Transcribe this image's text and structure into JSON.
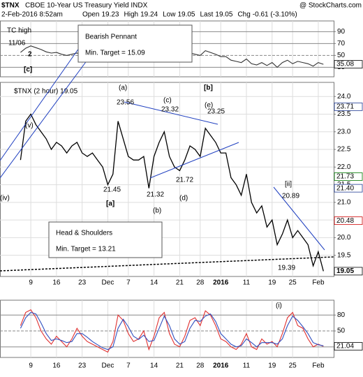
{
  "header": {
    "symbol": "$TNX",
    "name": "CBOE 10-Year US Treasury Yield INDX",
    "source": "@ StockCharts.com",
    "date": "2-Feb-2016 8:52am",
    "quote": [
      {
        "label": "Open",
        "value": 19.23
      },
      {
        "label": "High",
        "value": 19.24
      },
      {
        "label": "Low",
        "value": 19.05
      },
      {
        "label": "Last",
        "value": 19.05
      },
      {
        "label": "Chg",
        "value": "-0.61 (-3.10%)"
      }
    ]
  },
  "annotations": [
    {
      "text": "TC high",
      "color": "#000000"
    },
    {
      "text": "11/06",
      "color": "#000000"
    },
    {
      "text": "2",
      "color": "#8a2be2"
    },
    {
      "text": "[c]",
      "color": "#cc0000"
    },
    {
      "text": "(v)",
      "color": "#008000"
    },
    {
      "text": "(a)",
      "color": "#008000"
    },
    {
      "text": "(c)",
      "color": "#008000"
    },
    {
      "text": "(e)",
      "color": "#008000"
    },
    {
      "text": "[b]",
      "color": "#cc0000"
    },
    {
      "text": "23.56",
      "color": "#000000"
    },
    {
      "text": "23.32",
      "color": "#000000"
    },
    {
      "text": "23.25",
      "color": "#000000"
    },
    {
      "text": "21.45",
      "color": "#000000"
    },
    {
      "text": "21.32",
      "color": "#000000"
    },
    {
      "text": "21.72",
      "color": "#000000"
    },
    {
      "text": "20.89",
      "color": "#000000"
    },
    {
      "text": "19.39",
      "color": "#000000"
    },
    {
      "text": "[a]",
      "color": "#cc0000"
    },
    {
      "text": "(b)",
      "color": "#008000"
    },
    {
      "text": "(d)",
      "color": "#008000"
    },
    {
      "text": "(iv)",
      "color": "#008000"
    },
    {
      "text": "[ii]",
      "color": "#008000"
    },
    {
      "text": "(i)",
      "color": "#008000"
    },
    {
      "text": "Bearish Pennant",
      "color": "#000000"
    },
    {
      "text": "Min. Target = 15.09",
      "color": "#000000"
    },
    {
      "text": "Head & Shoulders",
      "color": "#000000"
    },
    {
      "text": "Min. Target = 13.21",
      "color": "#000000"
    }
  ],
  "chart_data": [
    {
      "type": "line",
      "ylim": [
        14,
        108
      ],
      "yticks": [
        30,
        50,
        70,
        90
      ],
      "grid": true,
      "series": [
        {
          "color": "#333333",
          "values": [
            55,
            62,
            66,
            63,
            60,
            56,
            54,
            55,
            52,
            50,
            52,
            54,
            51,
            50,
            50,
            48,
            47,
            42,
            46,
            60,
            55,
            50,
            49,
            50,
            51,
            42,
            50,
            55,
            58,
            50,
            46,
            45,
            49,
            54,
            52,
            50,
            58,
            55,
            52,
            48,
            48,
            42,
            40,
            38,
            44,
            36,
            34,
            38,
            33,
            38,
            30,
            38,
            42,
            36,
            40,
            38,
            36,
            32,
            38,
            35
          ]
        }
      ],
      "tags": [
        35.08
      ],
      "tag_colors": [
        "#000000"
      ]
    },
    {
      "type": "line",
      "xlim": [
        -4,
        61
      ],
      "xticks": [
        {
          "value": 2,
          "label": "9"
        },
        {
          "value": 7,
          "label": "16"
        },
        {
          "value": 12,
          "label": "23"
        },
        {
          "value": 17,
          "label": "Dec"
        },
        {
          "value": 21,
          "label": "7"
        },
        {
          "value": 26,
          "label": "14"
        },
        {
          "value": 31,
          "label": "21"
        },
        {
          "value": 35,
          "label": "28"
        },
        {
          "value": 39,
          "label": "2016"
        },
        {
          "value": 44,
          "label": "11"
        },
        {
          "value": 49,
          "label": "19"
        },
        {
          "value": 53,
          "label": "25"
        },
        {
          "value": 58,
          "label": "Feb"
        }
      ],
      "ylim": [
        18.9,
        24.4
      ],
      "yticks": [
        19.5,
        {
          "value": 20,
          "label": "20.0"
        },
        20.5,
        {
          "value": 21,
          "label": "21.0"
        },
        21.5,
        {
          "value": 22,
          "label": "22.0"
        },
        22.5,
        {
          "value": 23,
          "label": "23.0"
        },
        23.5,
        {
          "value": 24,
          "label": "24.0"
        }
      ],
      "grid": true,
      "series": [
        {
          "name": "$TNX (2 hour) 19.05",
          "color": "#000000",
          "values": [
            22.2,
            23.3,
            23.5,
            23.2,
            23.0,
            22.8,
            22.5,
            22.7,
            22.6,
            22.4,
            22.6,
            22.7,
            22.4,
            22.3,
            22.4,
            22.2,
            22.0,
            21.5,
            21.8,
            23.3,
            22.8,
            22.3,
            22.2,
            22.2,
            22.3,
            21.4,
            22.3,
            22.7,
            23.0,
            22.3,
            22.0,
            21.9,
            22.2,
            22.6,
            22.5,
            22.3,
            23.1,
            22.9,
            22.7,
            22.4,
            22.4,
            21.7,
            21.5,
            21.2,
            21.8,
            21.0,
            20.7,
            20.9,
            20.3,
            20.5,
            19.8,
            20.1,
            20.5,
            20.0,
            20.2,
            20.0,
            19.8,
            19.2,
            19.6,
            19.05
          ]
        }
      ],
      "tags": [
        23.71,
        21.73,
        21.4,
        20.48,
        19.05
      ],
      "tag_labels": [
        "23.71",
        "21.73",
        "21.40",
        "20.48",
        "19.05"
      ],
      "tag_colors": [
        "#1f3a93",
        "#007700",
        "#1f3a93",
        "#cc0000",
        "#000000"
      ]
    },
    {
      "type": "line",
      "ylim": [
        0,
        108
      ],
      "yticks": [
        20,
        50,
        80
      ],
      "grid": true,
      "series": [
        {
          "color": "#e03030",
          "values": [
            60,
            85,
            90,
            75,
            50,
            35,
            25,
            40,
            30,
            20,
            35,
            55,
            40,
            30,
            25,
            20,
            15,
            10,
            30,
            80,
            70,
            45,
            30,
            35,
            50,
            15,
            40,
            75,
            85,
            45,
            25,
            20,
            40,
            70,
            75,
            60,
            88,
            80,
            60,
            35,
            30,
            20,
            15,
            25,
            45,
            20,
            15,
            35,
            25,
            30,
            20,
            45,
            75,
            85,
            60,
            55,
            35,
            20,
            25,
            21
          ]
        },
        {
          "color": "#3050c0",
          "values": [
            55,
            75,
            85,
            82,
            65,
            45,
            32,
            35,
            32,
            28,
            30,
            45,
            45,
            38,
            30,
            24,
            18,
            15,
            20,
            55,
            72,
            58,
            40,
            34,
            42,
            30,
            32,
            55,
            78,
            60,
            35,
            25,
            30,
            55,
            70,
            68,
            78,
            82,
            68,
            45,
            35,
            25,
            20,
            22,
            35,
            28,
            20,
            28,
            28,
            28,
            25,
            35,
            60,
            78,
            70,
            58,
            45,
            28,
            24,
            22
          ]
        }
      ],
      "tags": [
        21.04
      ],
      "tag_colors": [
        "#000000"
      ]
    }
  ]
}
